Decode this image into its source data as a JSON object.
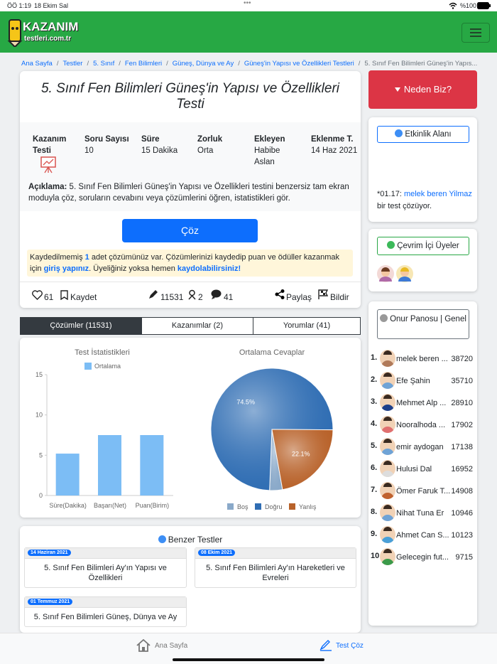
{
  "status_bar": {
    "time": "ÖÖ 1:19",
    "date": "18 Ekim Sal",
    "battery": "%100"
  },
  "header": {
    "logo_top": "KAZANIM",
    "logo_bottom": "testleri.com.tr"
  },
  "breadcrumb": [
    "Ana Sayfa",
    "Testler",
    "5. Sınıf",
    "Fen Bilimleri",
    "Güneş, Dünya ve Ay",
    "Güneş'in Yapısı ve Özellikleri Testleri",
    "5. Sınıf Fen Bilimleri Güneş'in Yapıs..."
  ],
  "test": {
    "title": "5. Sınıf Fen Bilimleri Güneş'in Yapısı ve Özellikleri Testi",
    "type_label": "Kazanım Testi",
    "info": [
      {
        "label": "Soru Sayısı",
        "value": "10"
      },
      {
        "label": "Süre",
        "value": "15 Dakika"
      },
      {
        "label": "Zorluk",
        "value": "Orta"
      },
      {
        "label": "Ekleyen",
        "value": "Habibe Aslan"
      },
      {
        "label": "Eklenme T.",
        "value": "14 Haz 2021"
      }
    ],
    "description_label": "Açıklama:",
    "description": "5. Sınıf Fen Bilimleri Güneş'in Yapısı ve Özellikleri testini benzersiz tam ekran moduyla çöz, soruların cevabını veya çözümlerini öğren, istatistikleri gör.",
    "solve_button": "Çöz",
    "notice": {
      "prefix": "Kaydedilmemiş",
      "count": "1",
      "middle": "adet çözümünüz var. Çözümlerinizi kaydedip puan ve ödüller kazanmak için",
      "login": "giriş yapınız",
      "middle2": ". Üyeliğiniz yoksa hemen",
      "register": "kaydolabilirsiniz!"
    },
    "actions": {
      "likes": "61",
      "save": "Kaydet",
      "views": "11531",
      "users": "2",
      "comments": "41",
      "share": "Paylaş",
      "report": "Bildir"
    }
  },
  "tabs": [
    "Çözümler (11531)",
    "Kazanımlar (2)",
    "Yorumlar (41)"
  ],
  "chart_data": [
    {
      "type": "bar",
      "title": "Test İstatistikleri",
      "categories": [
        "Süre(Dakika)",
        "Başarı(Net)",
        "Puan(Birim)"
      ],
      "series": [
        {
          "name": "Ortalama",
          "color": "#7cbdf5",
          "values": [
            5.2,
            7.5,
            7.5
          ]
        }
      ],
      "ylim": [
        0,
        15
      ],
      "yticks": [
        0,
        5,
        10,
        15
      ],
      "grid": false
    },
    {
      "type": "pie",
      "title": "Ortalama Cevaplar",
      "categories": [
        "Boş",
        "Doğru",
        "Yanlış"
      ],
      "values": [
        3.4,
        74.5,
        22.1
      ],
      "value_labels": [
        null,
        "74.5%",
        "22.1%"
      ],
      "colors": [
        "#8aa9c9",
        "#2f6db3",
        "#b8622a"
      ]
    }
  ],
  "sidebar": {
    "why_button": "Neden Biz?",
    "activity": {
      "title": "Etkinlik Alanı",
      "time": "*01.17:",
      "user": "melek beren Yilmaz",
      "text": "bir test çözüyor."
    },
    "online": {
      "title": "Çevrim İçi Üyeler"
    },
    "leaderboard": {
      "title": "Onur Panosu | Genel",
      "rows": [
        {
          "rank": "1.",
          "name": "melek beren ...",
          "score": "38720"
        },
        {
          "rank": "2.",
          "name": "Efe Şahin",
          "score": "35710"
        },
        {
          "rank": "3.",
          "name": "Mehmet Alp ...",
          "score": "28910"
        },
        {
          "rank": "4.",
          "name": "Nooralhoda ...",
          "score": "17902"
        },
        {
          "rank": "5.",
          "name": "emir aydogan",
          "score": "17138"
        },
        {
          "rank": "6.",
          "name": "Hulusi Dal",
          "score": "16952"
        },
        {
          "rank": "7.",
          "name": "Ömer Faruk T...",
          "score": "14908"
        },
        {
          "rank": "8.",
          "name": "Nihat Tuna Er",
          "score": "10946"
        },
        {
          "rank": "9.",
          "name": "Ahmet Can S...",
          "score": "10123"
        },
        {
          "rank": "10",
          "name": "Gelecegin fut...",
          "score": "9715"
        }
      ]
    }
  },
  "similar": {
    "title": "Benzer Testler",
    "items": [
      {
        "date": "14 Haziran 2021",
        "title": "5. Sınıf Fen Bilimleri Ay'ın Yapısı ve Özellikleri"
      },
      {
        "date": "08 Ekim 2021",
        "title": "5. Sınıf Fen Bilimleri Ay'ın Hareketleri ve Evreleri"
      },
      {
        "date": "01 Temmuz 2021",
        "title": "5. Sınıf Fen Bilimleri Güneş, Dünya ve Ay"
      }
    ]
  },
  "bottom_nav": [
    "Ana Sayfa",
    "Test Çöz"
  ]
}
